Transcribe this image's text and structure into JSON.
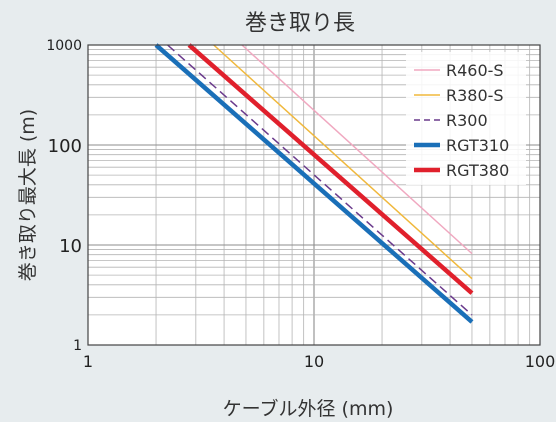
{
  "chart_data": {
    "type": "line",
    "title": "巻き取り長",
    "xlabel": "ケーブル外径 (mm)",
    "ylabel": "巻き取り最大長 (m)",
    "xscale": "log",
    "yscale": "log",
    "xlim": [
      1,
      100
    ],
    "ylim": [
      1,
      1000
    ],
    "grid": true,
    "legend_position": "top-right",
    "x_ticks": [
      1,
      10,
      100
    ],
    "x_tick_labels": [
      "1",
      "10",
      "100"
    ],
    "y_ticks": [
      1,
      10,
      100,
      1000
    ],
    "y_tick_labels": [
      "1",
      "10",
      "100",
      "1000"
    ],
    "series": [
      {
        "name": "R460-S",
        "color": "#f0a8c0",
        "style": "solid",
        "weight": "thin",
        "x": [
          4.8,
          50
        ],
        "y": [
          1000,
          8.2
        ]
      },
      {
        "name": "R380-S",
        "color": "#f0b83c",
        "style": "solid",
        "weight": "thin",
        "x": [
          3.6,
          50
        ],
        "y": [
          1000,
          4.6
        ]
      },
      {
        "name": "R300",
        "color": "#6a3a8c",
        "style": "dashed",
        "weight": "thin",
        "x": [
          2.25,
          50
        ],
        "y": [
          1000,
          2.0
        ]
      },
      {
        "name": "RGT310",
        "color": "#1a6fb8",
        "style": "solid",
        "weight": "thick",
        "x": [
          2.0,
          50
        ],
        "y": [
          1000,
          1.7
        ]
      },
      {
        "name": "RGT380",
        "color": "#e0202c",
        "style": "solid",
        "weight": "thick",
        "x": [
          2.8,
          50
        ],
        "y": [
          1000,
          3.3
        ]
      }
    ]
  }
}
